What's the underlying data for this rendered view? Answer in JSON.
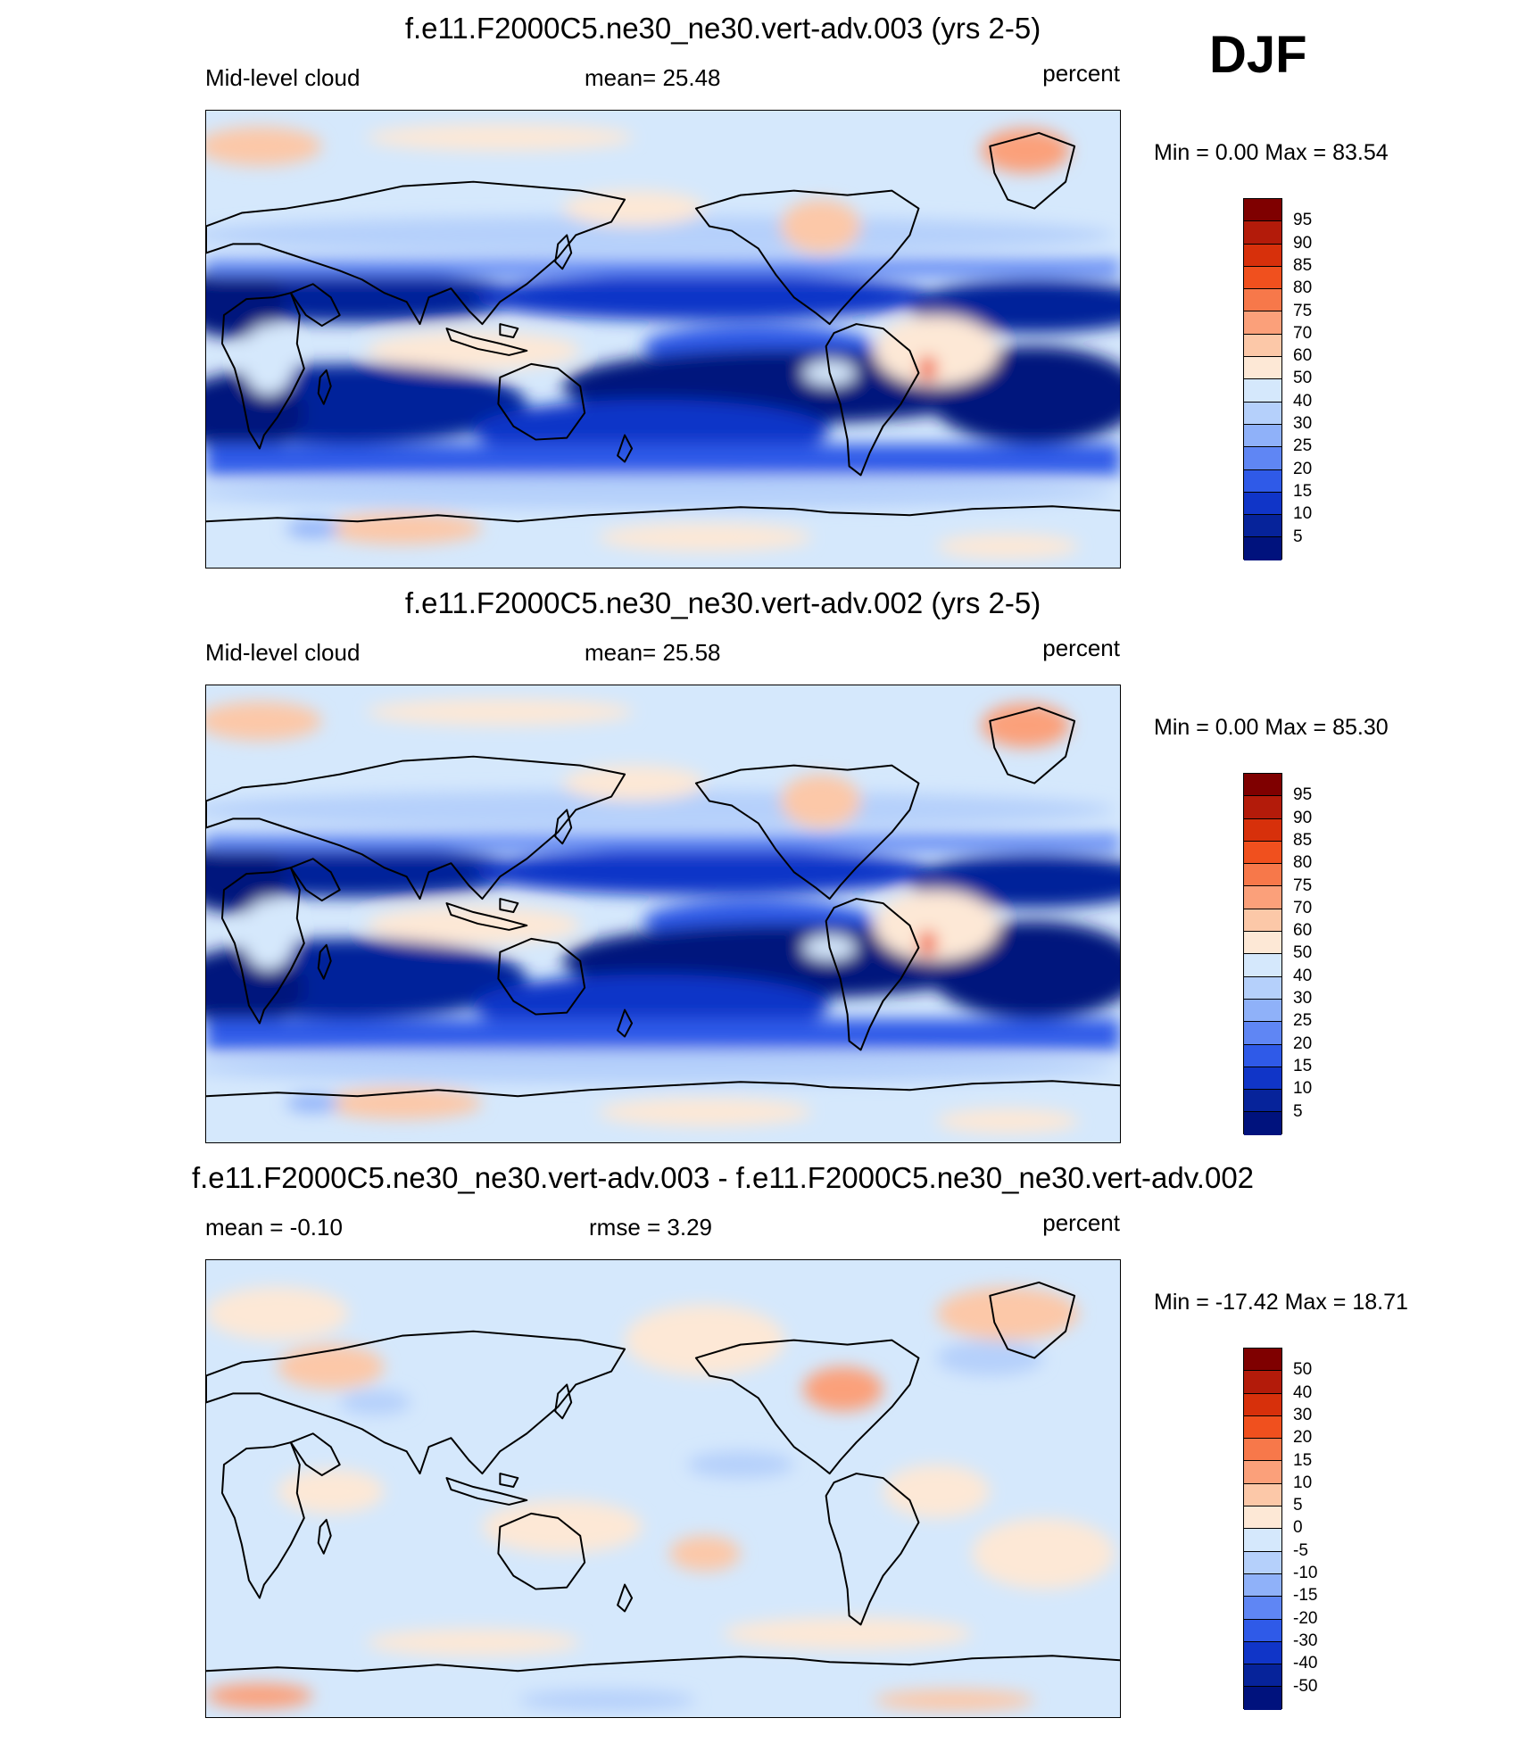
{
  "season": "DJF",
  "panels": [
    {
      "title": "f.e11.F2000C5.ne30_ne30.vert-adv.003 (yrs 2-5)",
      "left_label": "Mid-level cloud",
      "center_label": "mean=  25.48",
      "units": "percent",
      "minmax": "Min =   0.00 Max =  83.54",
      "field": "cloud"
    },
    {
      "title": "f.e11.F2000C5.ne30_ne30.vert-adv.002 (yrs 2-5)",
      "left_label": "Mid-level cloud",
      "center_label": "mean=  25.58",
      "units": "percent",
      "minmax": "Min =   0.00 Max =  85.30",
      "field": "cloud"
    },
    {
      "title": "f.e11.F2000C5.ne30_ne30.vert-adv.003 - f.e11.F2000C5.ne30_ne30.vert-adv.002",
      "left_label": "mean =  -0.10",
      "center_label": "rmse =   3.29",
      "units": "percent",
      "minmax": "Min = -17.42 Max =  18.71",
      "field": "diff"
    }
  ],
  "colorbars": [
    {
      "labels": [
        "95",
        "90",
        "85",
        "80",
        "75",
        "70",
        "60",
        "50",
        "40",
        "30",
        "25",
        "20",
        "15",
        "10",
        "5"
      ],
      "colors": [
        "#7f0000",
        "#b31b0a",
        "#d7300b",
        "#f0501e",
        "#f7784a",
        "#fba07a",
        "#fcc8a8",
        "#fde8d6",
        "#d5e8fc",
        "#b5d0fb",
        "#8fb1f9",
        "#5f86f4",
        "#2f5ae8",
        "#1035c8",
        "#06239a",
        "#00127d"
      ]
    },
    {
      "labels": [
        "95",
        "90",
        "85",
        "80",
        "75",
        "70",
        "60",
        "50",
        "40",
        "30",
        "25",
        "20",
        "15",
        "10",
        "5"
      ],
      "colors": [
        "#7f0000",
        "#b31b0a",
        "#d7300b",
        "#f0501e",
        "#f7784a",
        "#fba07a",
        "#fcc8a8",
        "#fde8d6",
        "#d5e8fc",
        "#b5d0fb",
        "#8fb1f9",
        "#5f86f4",
        "#2f5ae8",
        "#1035c8",
        "#06239a",
        "#00127d"
      ]
    },
    {
      "labels": [
        "50",
        "40",
        "30",
        "20",
        "15",
        "10",
        "5",
        "0",
        "-5",
        "-10",
        "-15",
        "-20",
        "-30",
        "-40",
        "-50"
      ],
      "colors": [
        "#7f0000",
        "#b31b0a",
        "#d7300b",
        "#f0501e",
        "#f7784a",
        "#fba07a",
        "#fcc8a8",
        "#fde8d6",
        "#d5e8fc",
        "#b5d0fb",
        "#8fb1f9",
        "#5f86f4",
        "#2f5ae8",
        "#1035c8",
        "#06239a",
        "#00127d"
      ]
    }
  ]
}
